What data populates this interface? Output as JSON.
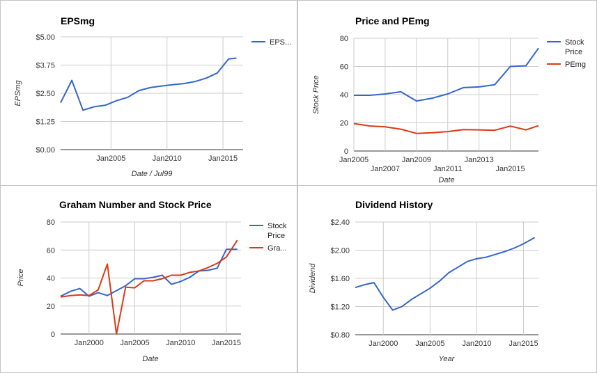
{
  "chart_data": [
    {
      "type": "line",
      "title": "EPSmg",
      "xlabel": "Date / Jul99",
      "ylabel": "EPSmg",
      "x_ticks": [
        "Jan2005",
        "Jan2010",
        "Jan2015"
      ],
      "y_ticks": [
        "$0.00",
        "$1.25",
        "$2.50",
        "$3.75",
        "$5.00"
      ],
      "xlim": [
        2000.5,
        2016.8
      ],
      "ylim": [
        0,
        5
      ],
      "grid": true,
      "legend": "right",
      "series": [
        {
          "name": "EPS...",
          "color": "#3366cc",
          "x": [
            2000.5,
            2001.5,
            2002.5,
            2003.5,
            2004.5,
            2005.5,
            2006.5,
            2007.5,
            2008.5,
            2009.5,
            2010.5,
            2011.5,
            2012.5,
            2013.5,
            2014.5,
            2015.5,
            2016.2
          ],
          "y": [
            2.08,
            3.07,
            1.75,
            1.9,
            1.97,
            2.17,
            2.32,
            2.62,
            2.75,
            2.82,
            2.88,
            2.93,
            3.02,
            3.17,
            3.4,
            4.02,
            4.06
          ]
        }
      ]
    },
    {
      "type": "line",
      "title": "Price and PEmg",
      "xlabel": "Date",
      "ylabel": "Stock Price",
      "x_ticks": [
        "Jan2005",
        "Jan2007",
        "Jan2009",
        "Jan2011",
        "Jan2013",
        "Jan2015"
      ],
      "y_ticks": [
        "0",
        "20",
        "40",
        "60",
        "80"
      ],
      "xlim": [
        2005,
        2016.8
      ],
      "ylim": [
        0,
        80
      ],
      "grid": true,
      "legend": "right",
      "series": [
        {
          "name": "Stock Price",
          "color": "#3366cc",
          "x": [
            2005,
            2006,
            2007,
            2008,
            2009,
            2010,
            2011,
            2012,
            2013,
            2014,
            2015,
            2016,
            2016.8
          ],
          "y": [
            39.5,
            39.5,
            40.5,
            42,
            35.5,
            37.5,
            40.5,
            45,
            45.5,
            47,
            60,
            60.5,
            73
          ]
        },
        {
          "name": "PEmg",
          "color": "#dc3912",
          "x": [
            2005,
            2006,
            2007,
            2008,
            2009,
            2010,
            2011,
            2012,
            2013,
            2014,
            2015,
            2016,
            2016.8
          ],
          "y": [
            19.5,
            17.8,
            17.2,
            15.5,
            12.5,
            13,
            13.8,
            15.2,
            15,
            14.7,
            17.7,
            15,
            18
          ]
        }
      ]
    },
    {
      "type": "line",
      "title": "Graham Number and Stock Price",
      "xlabel": "Date",
      "ylabel": "Price",
      "x_ticks": [
        "Jan2000",
        "Jan2005",
        "Jan2010",
        "Jan2015"
      ],
      "y_ticks": [
        "0",
        "20",
        "40",
        "60",
        "80"
      ],
      "xlim": [
        1996.9,
        2016.6
      ],
      "ylim": [
        0,
        80
      ],
      "grid": true,
      "legend": "right",
      "series": [
        {
          "name": "Stock Price",
          "color": "#3366cc",
          "x": [
            1996.9,
            1998,
            1999,
            2000,
            2001,
            2002,
            2003,
            2004,
            2005,
            2006,
            2007,
            2008,
            2009,
            2010,
            2011,
            2012,
            2013,
            2014,
            2015,
            2016.2
          ],
          "y": [
            27,
            30.5,
            32.5,
            27,
            29.5,
            27.5,
            31,
            34.5,
            39.5,
            39.5,
            40.5,
            42,
            35.5,
            37.5,
            40.5,
            45,
            45.5,
            47,
            60.5,
            60.5
          ]
        },
        {
          "name": "Gra...",
          "color": "#dc3912",
          "x": [
            1996.9,
            1998,
            1999,
            2000,
            2001,
            2002,
            2003,
            2004,
            2005,
            2006,
            2007,
            2008,
            2009,
            2010,
            2011,
            2012,
            2013,
            2014,
            2015,
            2016.2
          ],
          "y": [
            26.5,
            27.5,
            28,
            27.5,
            31.5,
            50,
            0,
            33.5,
            33,
            38,
            38,
            39.5,
            42,
            42,
            44,
            45,
            47.5,
            50.5,
            55,
            67
          ]
        }
      ]
    },
    {
      "type": "line",
      "title": "Dividend History",
      "xlabel": "Year",
      "ylabel": "Dividend",
      "x_ticks": [
        "Jan2000",
        "Jan2005",
        "Jan2010",
        "Jan2015"
      ],
      "y_ticks": [
        "$0.80",
        "$1.20",
        "$1.60",
        "$2.00",
        "$2.40"
      ],
      "xlim": [
        1997,
        2016.6
      ],
      "ylim": [
        0.8,
        2.4
      ],
      "grid": true,
      "legend": "none",
      "series": [
        {
          "name": "",
          "color": "#3366cc",
          "x": [
            1997,
            1998,
            1999,
            2000,
            2001,
            2002,
            2003,
            2004,
            2005,
            2006,
            2007,
            2008,
            2009,
            2010,
            2011,
            2012,
            2013,
            2014,
            2015,
            2016.2
          ],
          "y": [
            1.47,
            1.51,
            1.54,
            1.33,
            1.15,
            1.2,
            1.3,
            1.38,
            1.46,
            1.56,
            1.68,
            1.76,
            1.84,
            1.88,
            1.9,
            1.94,
            1.98,
            2.03,
            2.09,
            2.18
          ]
        }
      ]
    }
  ]
}
